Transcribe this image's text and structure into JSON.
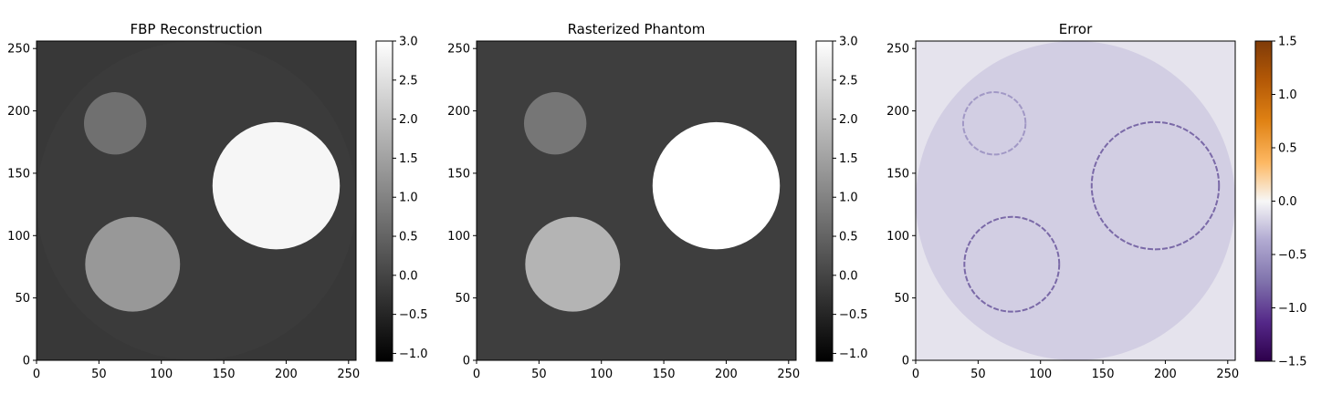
{
  "chart_data": [
    {
      "type": "heatmap",
      "title": "FBP Reconstruction",
      "xlim": [
        0,
        256
      ],
      "ylim": [
        0,
        256
      ],
      "xticks": [
        0,
        50,
        100,
        150,
        200,
        250
      ],
      "yticks": [
        0,
        50,
        100,
        150,
        200,
        250
      ],
      "colormap": "gray",
      "colorbar": {
        "range": [
          -1.1,
          3.0
        ],
        "ticks": [
          3.0,
          2.5,
          2.0,
          1.5,
          1.0,
          0.5,
          0.0,
          -0.5,
          -1.0
        ],
        "tick_labels": [
          "3.0",
          "2.5",
          "2.0",
          "1.5",
          "1.0",
          "0.5",
          "0.0",
          "−0.5",
          "−1.0"
        ]
      },
      "background_value": -0.2,
      "field_disk": {
        "cx": 128,
        "cy": 128,
        "r": 128,
        "value": -0.15
      },
      "objects": [
        {
          "shape": "circle",
          "cx": 63,
          "cy": 190,
          "r": 25,
          "value": 0.7
        },
        {
          "shape": "circle",
          "cx": 77,
          "cy": 77,
          "r": 38,
          "value": 1.35
        },
        {
          "shape": "circle",
          "cx": 192,
          "cy": 140,
          "r": 51,
          "value": 2.85
        }
      ]
    },
    {
      "type": "heatmap",
      "title": "Rasterized Phantom",
      "xlim": [
        0,
        256
      ],
      "ylim": [
        0,
        256
      ],
      "xticks": [
        0,
        50,
        100,
        150,
        200,
        250
      ],
      "yticks": [
        0,
        50,
        100,
        150,
        200,
        250
      ],
      "colormap": "gray",
      "colorbar": {
        "range": [
          -1.1,
          3.0
        ],
        "ticks": [
          3.0,
          2.5,
          2.0,
          1.5,
          1.0,
          0.5,
          0.0,
          -0.5,
          -1.0
        ],
        "tick_labels": [
          "3.0",
          "2.5",
          "2.0",
          "1.5",
          "1.0",
          "0.5",
          "0.0",
          "−0.5",
          "−1.0"
        ]
      },
      "background_value": -0.1,
      "objects": [
        {
          "shape": "circle",
          "cx": 63,
          "cy": 190,
          "r": 25,
          "value": 0.8
        },
        {
          "shape": "circle",
          "cx": 77,
          "cy": 77,
          "r": 38,
          "value": 1.8
        },
        {
          "shape": "circle",
          "cx": 192,
          "cy": 140,
          "r": 51,
          "value": 3.0
        }
      ]
    },
    {
      "type": "heatmap",
      "title": "Error",
      "xlim": [
        0,
        256
      ],
      "ylim": [
        0,
        256
      ],
      "xticks": [
        0,
        50,
        100,
        150,
        200,
        250
      ],
      "yticks": [
        0,
        50,
        100,
        150,
        200,
        250
      ],
      "colormap": "PuOr",
      "colorbar": {
        "range": [
          -1.5,
          1.5
        ],
        "ticks": [
          1.5,
          1.0,
          0.5,
          0.0,
          -0.5,
          -1.0,
          -1.5
        ],
        "tick_labels": [
          "1.5",
          "1.0",
          "0.5",
          "0.0",
          "−0.5",
          "−1.0",
          "−1.5"
        ]
      },
      "background_value": -0.1,
      "field_disk": {
        "cx": 128,
        "cy": 128,
        "r": 128,
        "value": -0.2
      },
      "objects": [
        {
          "shape": "ring",
          "cx": 63,
          "cy": 190,
          "r": 25,
          "value": -0.5
        },
        {
          "shape": "ring",
          "cx": 77,
          "cy": 77,
          "r": 38,
          "value": -0.8
        },
        {
          "shape": "ring",
          "cx": 192,
          "cy": 140,
          "r": 51,
          "value": -0.8
        }
      ]
    }
  ]
}
